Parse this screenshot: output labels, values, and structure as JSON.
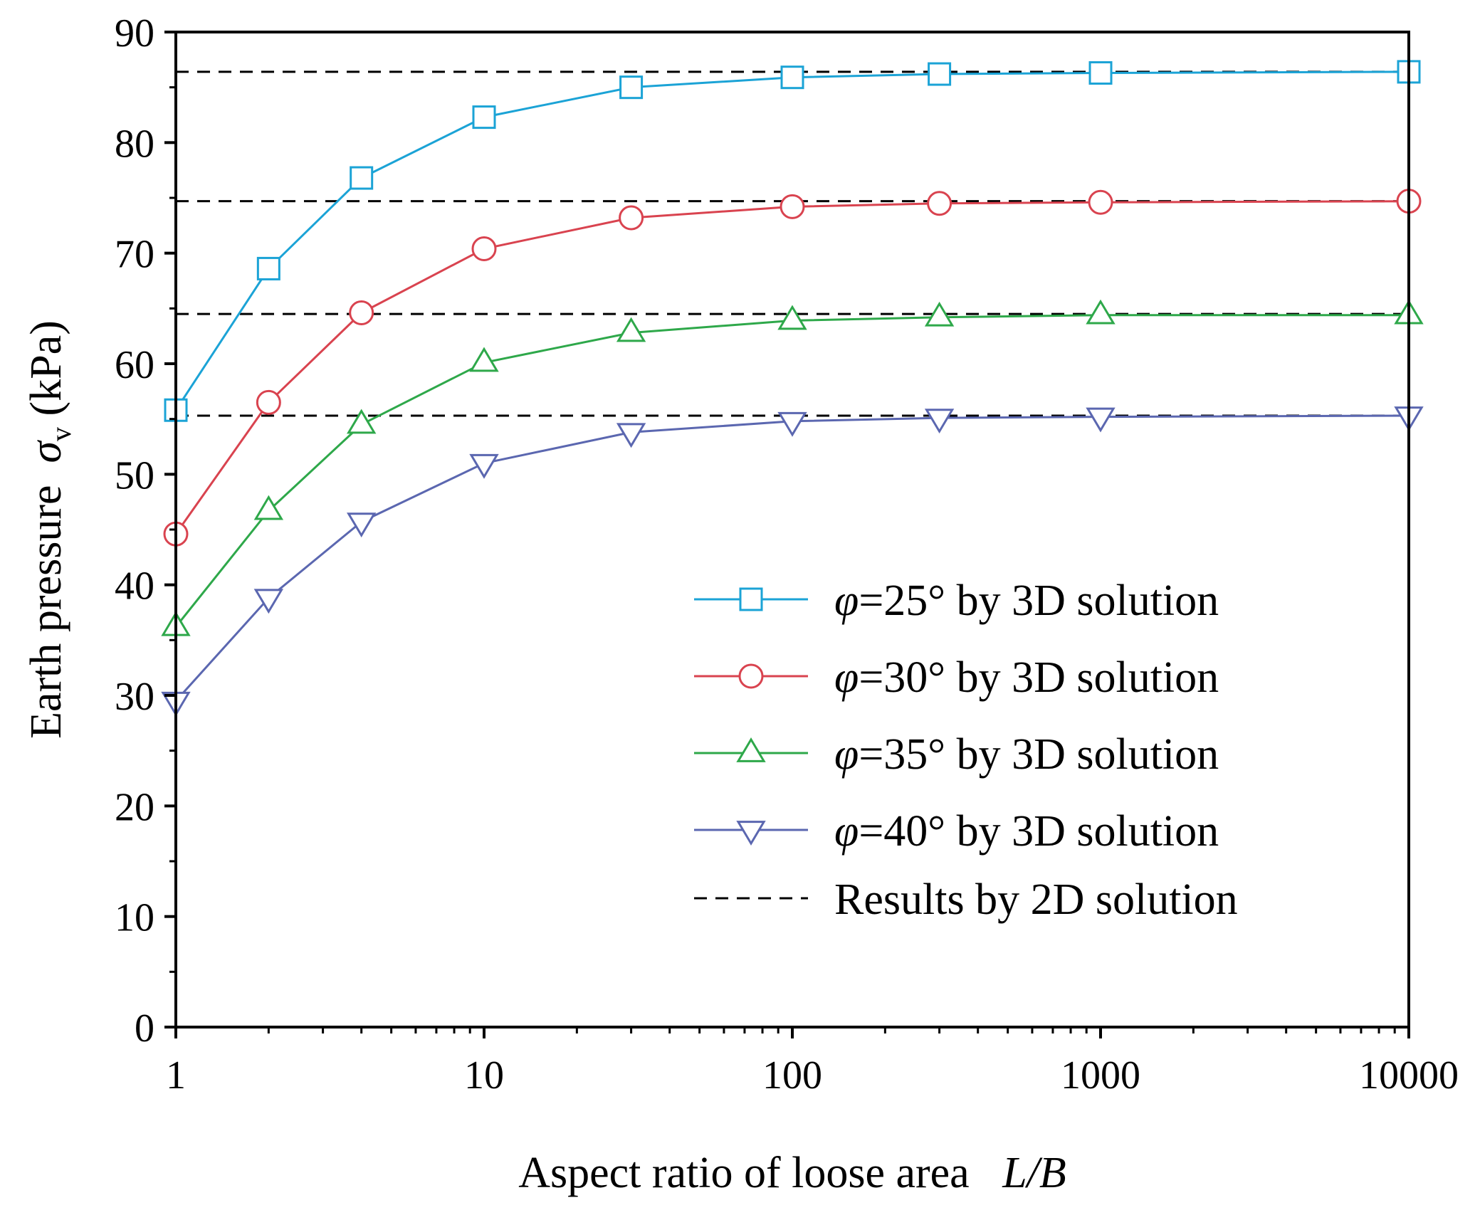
{
  "chart_data": {
    "type": "line",
    "x_scale": "log",
    "x": [
      1,
      2,
      4,
      10,
      30,
      100,
      300,
      1000,
      10000
    ],
    "xlim": [
      1,
      10000
    ],
    "ylim": [
      0,
      90
    ],
    "x_ticks": [
      1,
      10,
      100,
      1000,
      10000
    ],
    "x_tick_labels": [
      "1",
      "10",
      "100",
      "1000",
      "10000"
    ],
    "y_ticks": [
      0,
      10,
      20,
      30,
      40,
      50,
      60,
      70,
      80,
      90
    ],
    "y_tick_labels": [
      "0",
      "10",
      "20",
      "30",
      "40",
      "50",
      "60",
      "70",
      "80",
      "90"
    ],
    "xlabel": {
      "text": "Aspect ratio of loose area",
      "var": "L/B"
    },
    "ylabel": {
      "text": "Earth pressure",
      "var": "σ",
      "sub": "v",
      "unit": "(kPa)"
    },
    "series": [
      {
        "name": "φ=25° by 3D solution",
        "phi": "φ",
        "label_rest": "=25° by 3D solution",
        "marker": "square",
        "color": "#1BA3D6",
        "values": [
          55.8,
          68.6,
          76.8,
          82.3,
          85.0,
          85.9,
          86.2,
          86.3,
          86.4
        ]
      },
      {
        "name": "φ=30° by 3D solution",
        "phi": "φ",
        "label_rest": "=30° by 3D solution",
        "marker": "circle",
        "color": "#D9434F",
        "values": [
          44.6,
          56.5,
          64.6,
          70.4,
          73.2,
          74.2,
          74.5,
          74.6,
          74.7
        ]
      },
      {
        "name": "φ=35° by 3D solution",
        "phi": "φ",
        "label_rest": "=35° by 3D solution",
        "marker": "triangle-up",
        "color": "#2EA84A",
        "values": [
          36.2,
          46.7,
          54.5,
          60.1,
          62.8,
          63.9,
          64.2,
          64.4,
          64.4
        ]
      },
      {
        "name": "φ=40° by 3D solution",
        "phi": "φ",
        "label_rest": "=40° by 3D solution",
        "marker": "triangle-down",
        "color": "#5B67B0",
        "values": [
          29.5,
          38.8,
          45.7,
          51.0,
          53.8,
          54.8,
          55.1,
          55.2,
          55.3
        ]
      }
    ],
    "reference_lines": {
      "name": "Results by 2D solution",
      "color": "#000000",
      "style": "dashed",
      "values": [
        86.4,
        74.7,
        64.5,
        55.3
      ]
    },
    "legend_position": "bottom-right"
  }
}
